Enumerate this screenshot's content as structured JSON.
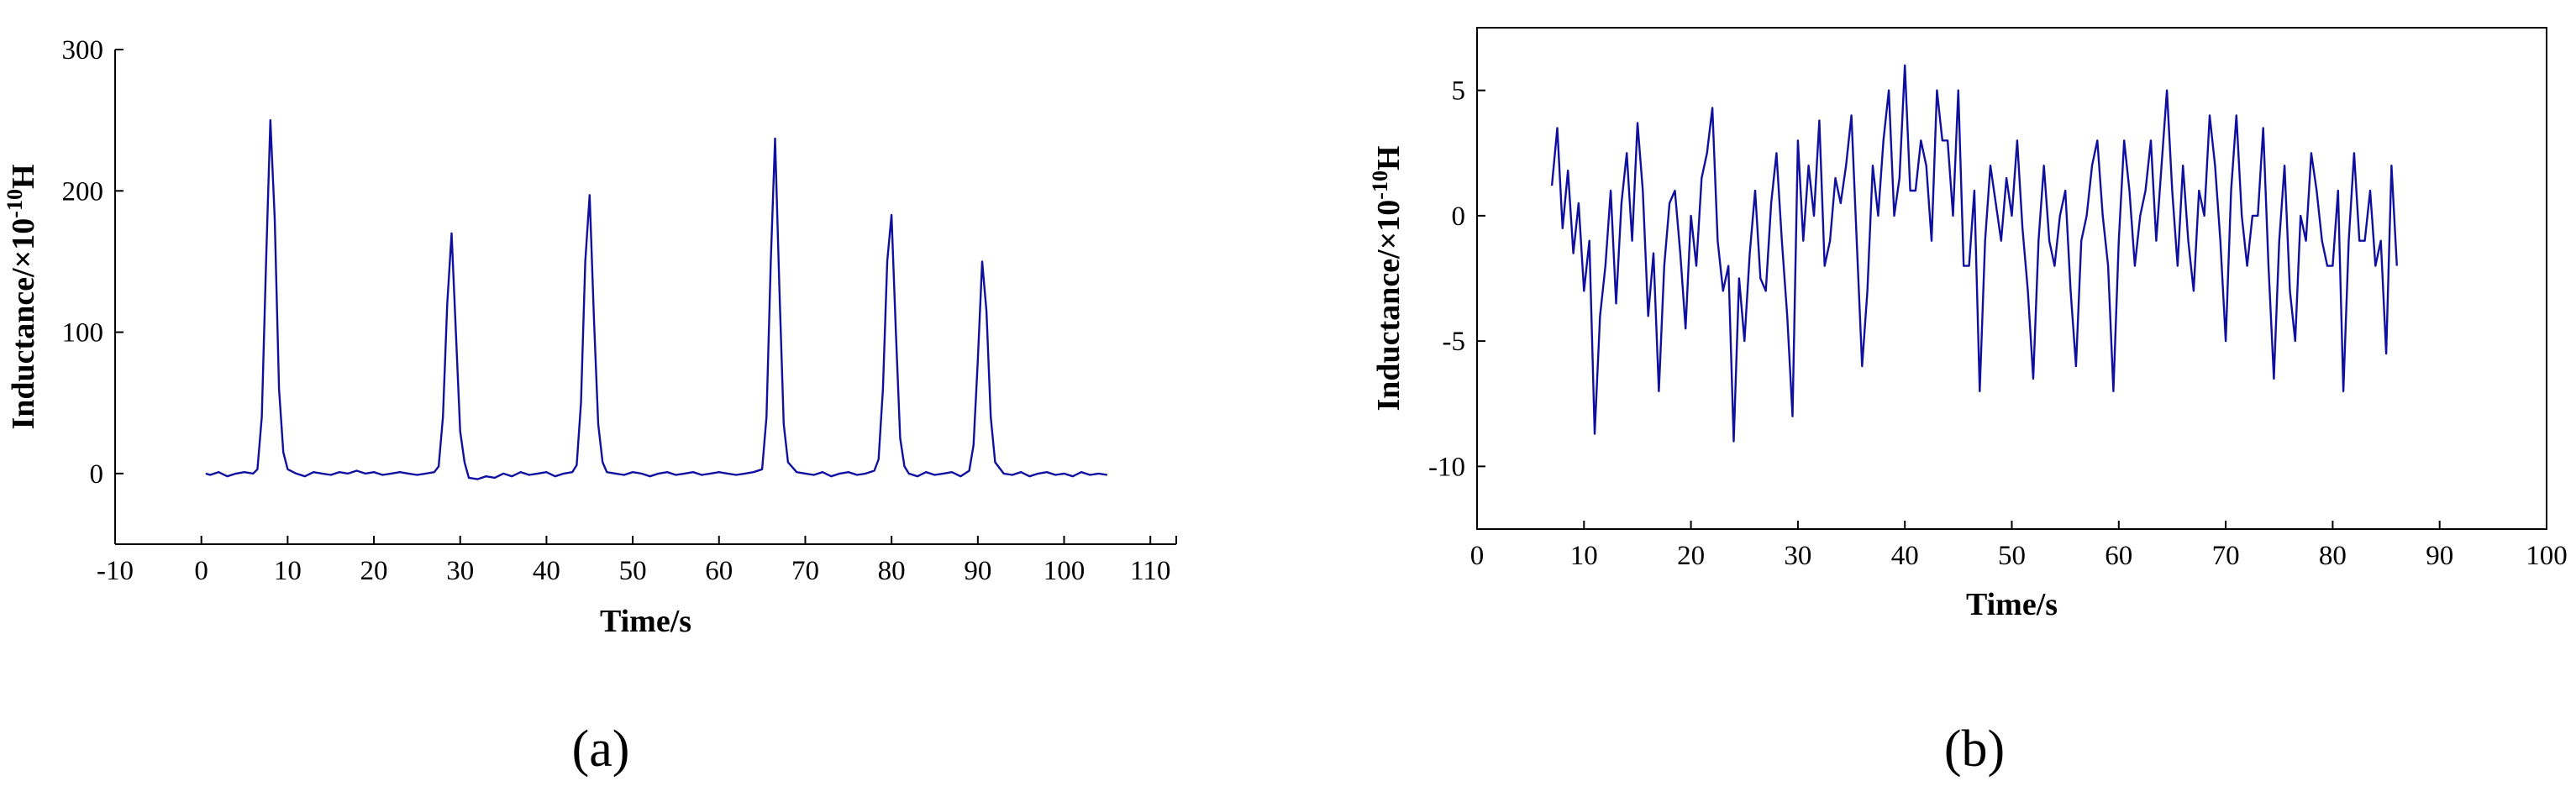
{
  "chart_data": [
    {
      "type": "line",
      "caption": "(a)",
      "xlabel": "Time/s",
      "ylabel": "Inductance/×10",
      "ylabel_exponent": "-10",
      "ylabel_unit": "H",
      "box": false,
      "color": "#1010a0",
      "xlim": [
        -10,
        113
      ],
      "xticks": [
        -10,
        0,
        10,
        20,
        30,
        40,
        50,
        60,
        70,
        80,
        90,
        100,
        110
      ],
      "ylim": [
        -50,
        300
      ],
      "yticks": [
        0,
        100,
        200,
        300
      ],
      "x": [
        0.5,
        1,
        2,
        3,
        4,
        5,
        6,
        6.5,
        7,
        7.5,
        8,
        8.5,
        9,
        9.5,
        10,
        11,
        12,
        13,
        14,
        15,
        16,
        17,
        18,
        19,
        20,
        21,
        22,
        23,
        24,
        25,
        26,
        27,
        27.5,
        28,
        28.5,
        29,
        29.5,
        30,
        30.5,
        31,
        32,
        33,
        34,
        35,
        36,
        37,
        38,
        39,
        40,
        41,
        42,
        43,
        43.5,
        44,
        44.5,
        45,
        45.5,
        46,
        46.5,
        47,
        48,
        49,
        50,
        51,
        52,
        53,
        54,
        55,
        56,
        57,
        58,
        59,
        60,
        61,
        62,
        63,
        64,
        65,
        65.5,
        66,
        66.5,
        67,
        67.5,
        68,
        69,
        70,
        71,
        72,
        73,
        74,
        75,
        76,
        77,
        78,
        78.5,
        79,
        79.5,
        80,
        80.5,
        81,
        81.5,
        82,
        83,
        84,
        85,
        86,
        87,
        88,
        89,
        89.5,
        90,
        90.5,
        91,
        91.5,
        92,
        93,
        94,
        95,
        96,
        97,
        98,
        99,
        100,
        101,
        102,
        103,
        104,
        105
      ],
      "values": [
        0,
        -1,
        1,
        -2,
        0,
        1,
        0,
        3,
        40,
        150,
        250,
        180,
        60,
        15,
        3,
        0,
        -2,
        1,
        0,
        -1,
        1,
        0,
        2,
        0,
        1,
        -1,
        0,
        1,
        0,
        -1,
        0,
        1,
        5,
        40,
        120,
        170,
        100,
        30,
        8,
        -3,
        -4,
        -2,
        -3,
        0,
        -2,
        1,
        -1,
        0,
        1,
        -2,
        0,
        1,
        6,
        50,
        150,
        197,
        110,
        35,
        8,
        1,
        0,
        -1,
        1,
        0,
        -2,
        0,
        1,
        -1,
        0,
        1,
        -1,
        0,
        1,
        0,
        -1,
        0,
        1,
        3,
        40,
        150,
        237,
        130,
        35,
        8,
        1,
        0,
        -1,
        1,
        -2,
        0,
        1,
        -1,
        0,
        2,
        10,
        60,
        150,
        183,
        100,
        25,
        5,
        0,
        -2,
        1,
        -1,
        0,
        1,
        -2,
        2,
        20,
        80,
        150,
        115,
        40,
        8,
        0,
        -1,
        1,
        -2,
        0,
        1,
        -1,
        0,
        -2,
        1,
        -1,
        0,
        -1
      ]
    },
    {
      "type": "line",
      "caption": "(b)",
      "xlabel": "Time/s",
      "ylabel": "Inductance/×10",
      "ylabel_exponent": "-10",
      "ylabel_unit": "H",
      "box": true,
      "color": "#1010a0",
      "xlim": [
        0,
        100
      ],
      "xticks": [
        0,
        10,
        20,
        30,
        40,
        50,
        60,
        70,
        80,
        90,
        100
      ],
      "ylim": [
        -12.5,
        7.5
      ],
      "yticks": [
        -10,
        -5,
        0,
        5
      ],
      "x": [
        7,
        7.5,
        8,
        8.5,
        9,
        9.5,
        10,
        10.5,
        11,
        11.5,
        12,
        12.5,
        13,
        13.5,
        14,
        14.5,
        15,
        15.5,
        16,
        16.5,
        17,
        17.5,
        18,
        18.5,
        19,
        19.5,
        20,
        20.5,
        21,
        21.5,
        22,
        22.5,
        23,
        23.5,
        24,
        24.5,
        25,
        25.5,
        26,
        26.5,
        27,
        27.5,
        28,
        28.5,
        29,
        29.5,
        30,
        30.5,
        31,
        31.5,
        32,
        32.5,
        33,
        33.5,
        34,
        34.5,
        35,
        35.5,
        36,
        36.5,
        37,
        37.5,
        38,
        38.5,
        39,
        39.5,
        40,
        40.5,
        41,
        41.5,
        42,
        42.5,
        43,
        43.5,
        44,
        44.5,
        45,
        45.5,
        46,
        46.5,
        47,
        47.5,
        48,
        48.5,
        49,
        49.5,
        50,
        50.5,
        51,
        51.5,
        52,
        52.5,
        53,
        53.5,
        54,
        54.5,
        55,
        55.5,
        56,
        56.5,
        57,
        57.5,
        58,
        58.5,
        59,
        59.5,
        60,
        60.5,
        61,
        61.5,
        62,
        62.5,
        63,
        63.5,
        64,
        64.5,
        65,
        65.5,
        66,
        66.5,
        67,
        67.5,
        68,
        68.5,
        69,
        69.5,
        70,
        70.5,
        71,
        71.5,
        72,
        72.5,
        73,
        73.5,
        74,
        74.5,
        75,
        75.5,
        76,
        76.5,
        77,
        77.5,
        78,
        78.5,
        79,
        79.5,
        80,
        80.5,
        81,
        81.5,
        82,
        82.5,
        83,
        83.5,
        84,
        84.5,
        85,
        85.5,
        86
      ],
      "values": [
        1.2,
        3.5,
        -0.5,
        1.8,
        -1.5,
        0.5,
        -3,
        -1,
        -8.7,
        -4,
        -2,
        1,
        -3.5,
        0.5,
        2.5,
        -1,
        3.7,
        1,
        -4,
        -1.5,
        -7,
        -2,
        0.5,
        1,
        -1.5,
        -4.5,
        0,
        -2,
        1.5,
        2.5,
        4.3,
        -1,
        -3,
        -2,
        -9,
        -2.5,
        -5,
        -1.5,
        1,
        -2.5,
        -3,
        0.5,
        2.5,
        -1,
        -4,
        -8,
        3,
        -1,
        2,
        0,
        3.8,
        -2,
        -1,
        1.5,
        0.5,
        2,
        4,
        -1,
        -6,
        -3,
        2,
        0,
        3,
        5,
        0,
        1.5,
        6,
        1,
        1,
        3,
        2,
        -1,
        5,
        3,
        3,
        0,
        5,
        -2,
        -2,
        1,
        -7,
        -1,
        2,
        0.5,
        -1,
        1.5,
        0,
        3,
        -0.5,
        -3,
        -6.5,
        -1,
        2,
        -1,
        -2,
        0,
        1,
        -3,
        -6,
        -1,
        0,
        2,
        3,
        0,
        -2,
        -7,
        -1,
        3,
        1,
        -2,
        0,
        1,
        3,
        -1,
        2,
        5,
        1,
        -2,
        2,
        -1,
        -3,
        1,
        0,
        4,
        2,
        -1,
        -5,
        1,
        4,
        0,
        -2,
        0,
        0,
        3.5,
        -2,
        -6.5,
        -1,
        2,
        -3,
        -5,
        0,
        -1,
        2.5,
        1,
        -1,
        -2,
        -2,
        1,
        -7,
        -1,
        2.5,
        -1,
        -1,
        1,
        -2,
        -1,
        -5.5,
        2,
        -2
      ]
    }
  ]
}
